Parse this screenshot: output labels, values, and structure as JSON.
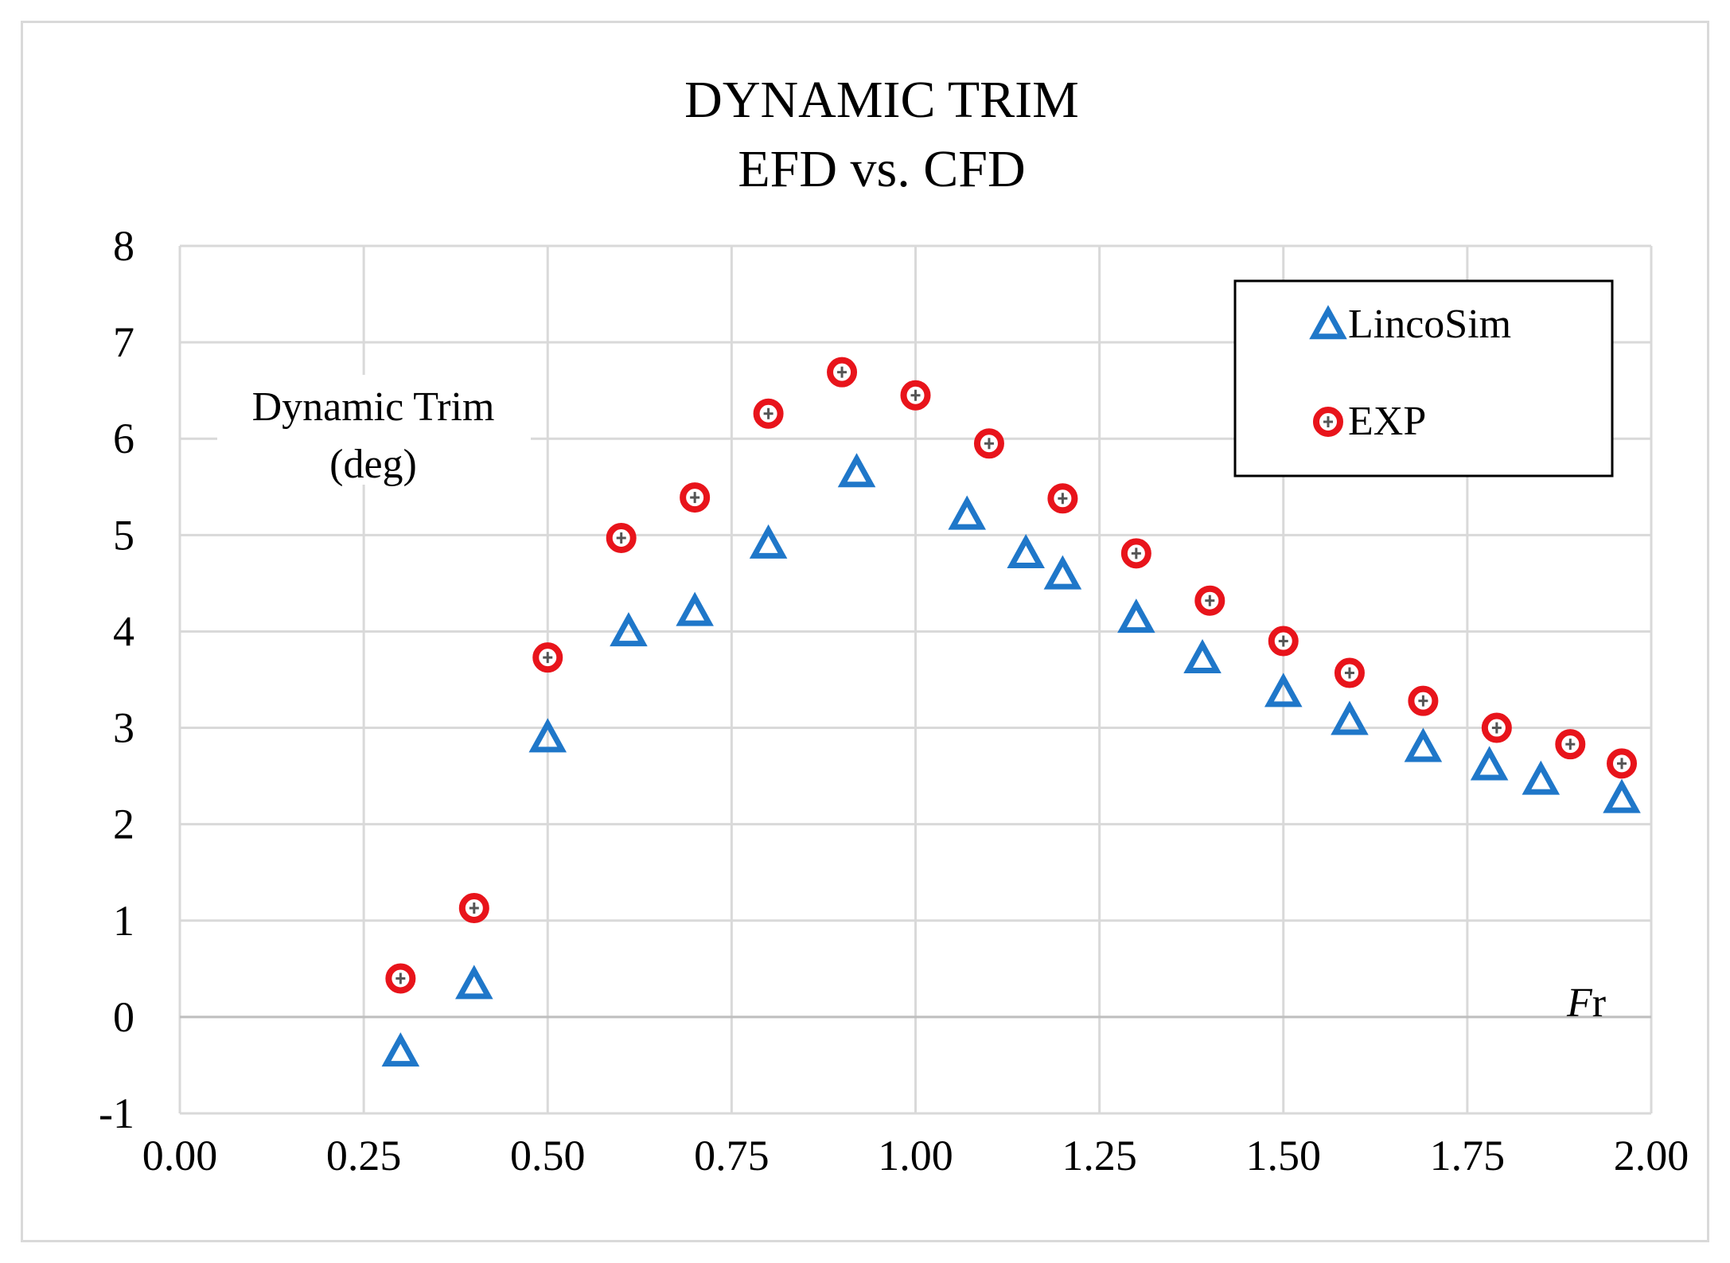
{
  "chart_data": {
    "type": "scatter",
    "title": [
      "DYNAMIC TRIM",
      "EFD vs. CFD"
    ],
    "ylabel": [
      "Dynamic Trim",
      "(deg)"
    ],
    "xlabel": "Fr",
    "xlim": [
      0,
      2
    ],
    "ylim": [
      -1,
      8
    ],
    "x_ticks": [
      "0.00",
      "0.25",
      "0.50",
      "0.75",
      "1.00",
      "1.25",
      "1.50",
      "1.75",
      "2.00"
    ],
    "x_tick_values": [
      0,
      0.25,
      0.5,
      0.75,
      1.0,
      1.25,
      1.5,
      1.75,
      2.0
    ],
    "y_ticks": [
      "-1",
      "0",
      "1",
      "2",
      "3",
      "4",
      "5",
      "6",
      "7",
      "8"
    ],
    "y_tick_values": [
      -1,
      0,
      1,
      2,
      3,
      4,
      5,
      6,
      7,
      8
    ],
    "grid": true,
    "legend_position": "top-right",
    "series": [
      {
        "name": "LincoSim",
        "marker": "triangle",
        "color": "#1f77c9",
        "x": [
          0.3,
          0.4,
          0.5,
          0.61,
          0.7,
          0.8,
          0.92,
          1.07,
          1.15,
          1.2,
          1.3,
          1.39,
          1.5,
          1.59,
          1.69,
          1.78,
          1.85,
          1.96
        ],
        "y": [
          -0.38,
          0.32,
          2.88,
          3.98,
          4.19,
          4.89,
          5.63,
          5.19,
          4.79,
          4.57,
          4.12,
          3.7,
          3.35,
          3.06,
          2.78,
          2.59,
          2.44,
          2.25
        ]
      },
      {
        "name": "EXP",
        "marker": "circle",
        "color": "#e8141b",
        "x": [
          0.3,
          0.4,
          0.5,
          0.6,
          0.7,
          0.8,
          0.9,
          1.0,
          1.1,
          1.2,
          1.3,
          1.4,
          1.5,
          1.59,
          1.69,
          1.79,
          1.89,
          1.96
        ],
        "y": [
          0.4,
          1.13,
          3.73,
          4.97,
          5.39,
          6.26,
          6.69,
          6.45,
          5.95,
          5.38,
          4.81,
          4.32,
          3.9,
          3.57,
          3.28,
          3.0,
          2.83,
          2.63
        ]
      }
    ]
  }
}
